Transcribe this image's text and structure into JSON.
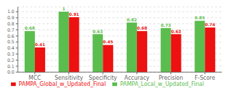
{
  "chart_data": {
    "type": "bar",
    "categories": [
      "MCC",
      "Sensitivity",
      "Specificity",
      "Accuracy",
      "Precision",
      "F-Score"
    ],
    "series": [
      {
        "name": "PAMPA_Local_w_Updated_Final",
        "color": "#5BBD4E",
        "values": [
          0.68,
          1.0,
          0.63,
          0.82,
          0.73,
          0.85
        ]
      },
      {
        "name": "PAMPA_Global_w_Updated_Final",
        "color": "#EE1111",
        "values": [
          0.41,
          0.91,
          0.45,
          0.68,
          0.63,
          0.74
        ]
      }
    ],
    "ylim": [
      0,
      1.08
    ],
    "yticks": [
      {
        "value": 0,
        "label": "0.0"
      },
      0.1,
      0.2,
      0.3,
      0.4,
      0.5,
      0.6,
      0.7,
      0.8,
      0.9,
      {
        "value": 1,
        "label": "1.0"
      }
    ],
    "grid": true,
    "legend": "bottom",
    "data_labels": true
  }
}
